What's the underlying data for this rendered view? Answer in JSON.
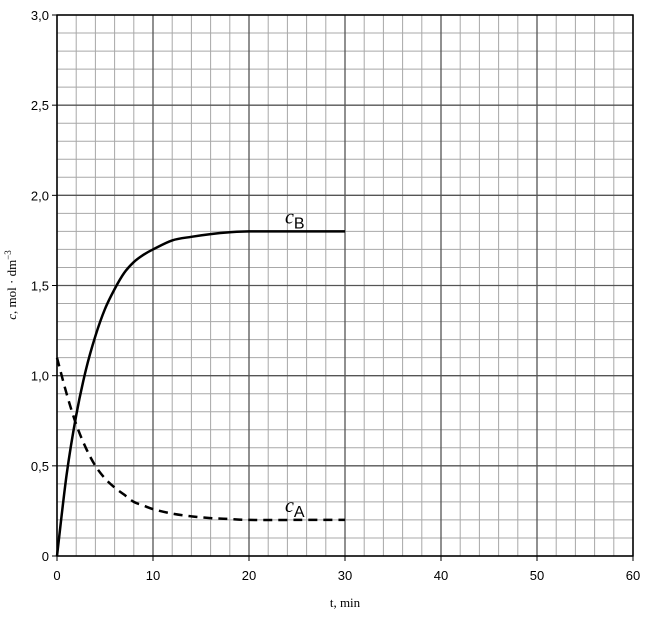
{
  "chart_data": {
    "type": "line",
    "xlabel": "t, min",
    "ylabel": {
      "symbol": "c",
      "text": ", mol · dm",
      "superscript": "−3"
    },
    "x": [
      0,
      1,
      2,
      3,
      4,
      5,
      6,
      7,
      8,
      9,
      10,
      12,
      14,
      16,
      18,
      20,
      25,
      30
    ],
    "series": [
      {
        "label": {
          "symbol": "c",
          "subscript": "B"
        },
        "color": "#000000",
        "dashed": false,
        "values": [
          0,
          0.45,
          0.78,
          1.03,
          1.22,
          1.37,
          1.48,
          1.57,
          1.63,
          1.67,
          1.7,
          1.75,
          1.77,
          1.785,
          1.795,
          1.8,
          1.8,
          1.8
        ]
      },
      {
        "label": {
          "symbol": "c",
          "subscript": "A"
        },
        "color": "#000000",
        "dashed": true,
        "values": [
          1.1,
          0.9,
          0.73,
          0.6,
          0.5,
          0.43,
          0.38,
          0.34,
          0.3,
          0.28,
          0.26,
          0.235,
          0.22,
          0.21,
          0.205,
          0.2,
          0.2,
          0.2
        ]
      }
    ],
    "xlim": [
      0,
      60
    ],
    "xticks": [
      0,
      10,
      20,
      30,
      40,
      50,
      60
    ],
    "ylim": [
      0,
      3
    ],
    "yticks": [
      0,
      {
        "value": 0.5,
        "label": "0,5"
      },
      {
        "value": 1,
        "label": "1,0"
      },
      {
        "value": 1.5,
        "label": "1,5"
      },
      {
        "value": 2,
        "label": "2,0"
      },
      {
        "value": 2.5,
        "label": "2,5"
      },
      {
        "value": 3,
        "label": "3,0"
      }
    ],
    "grid": true,
    "minor_grid_divisions": 5
  }
}
